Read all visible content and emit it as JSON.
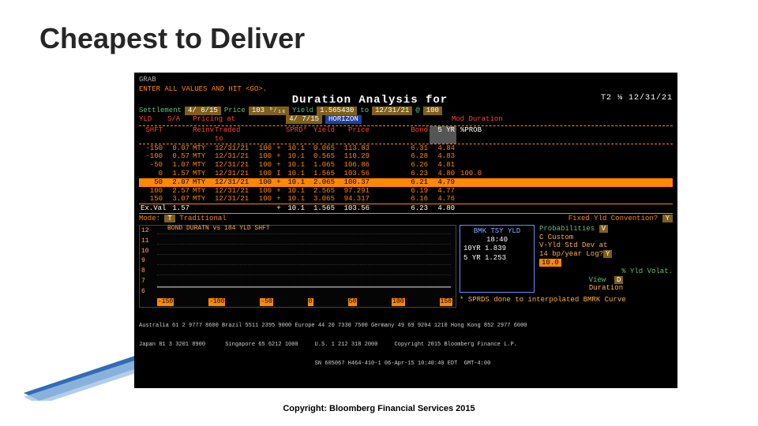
{
  "slide": {
    "title": "Cheapest to Deliver"
  },
  "grab": "GRAB",
  "prompt": "ENTER ALL VALUES AND HIT <GO>.",
  "analysisTitle": "Duration    Analysis  for",
  "hdrRight": "T2 ⅛  12/31/21",
  "settle": {
    "label": "Settlement",
    "date": "4/ 6/15",
    "priceLbl": "Price",
    "price": "103 ⁹⁄₁₆",
    "yieldLbl": "Yield",
    "yield": "1.565430",
    "to": "to",
    "toDate": "12/31/21",
    "at": "@",
    "atVal": "100"
  },
  "yldRow": {
    "yld": "YLD",
    "sa": "S/A",
    "pricing": "Pricing at",
    "date": "4/ 7/15",
    "horizon": "HORIZON",
    "moddur": "Mod Duration"
  },
  "header": {
    "shft": "SHFT",
    "reinv": "Reinv",
    "traded": "Traded to",
    "sprd": "SPRD*",
    "yield": "Yield",
    "price": "Price",
    "bond": "Bond",
    "fiveyr": "5 YR",
    "prob": "%PROB"
  },
  "rows": [
    {
      "shft": "-150",
      "sa": "0.07",
      "rein": "MTY",
      "trad": "12/31/21",
      "sp": "100",
      "plus": "+",
      "sprd": "10.1",
      "yld": "0.065",
      "prc": "113.83",
      "bond": "6.31",
      "fyr": "4.84",
      "prob": ""
    },
    {
      "shft": "-100",
      "sa": "0.57",
      "rein": "MTY",
      "trad": "12/31/21",
      "sp": "100",
      "plus": "+",
      "sprd": "10.1",
      "yld": "0.565",
      "prc": "110.29",
      "bond": "6.28",
      "fyr": "4.83",
      "prob": ""
    },
    {
      "shft": "-50",
      "sa": "1.07",
      "rein": "MTY",
      "trad": "12/31/21",
      "sp": "100",
      "plus": "+",
      "sprd": "10.1",
      "yld": "1.065",
      "prc": "106.86",
      "bond": "6.26",
      "fyr": "4.81",
      "prob": ""
    },
    {
      "shft": "0",
      "sa": "1.57",
      "rein": "MTY",
      "trad": "12/31/21",
      "sp": "100",
      "plus": "I",
      "sprd": "10.1",
      "yld": "1.565",
      "prc": "103.56",
      "bond": "6.23",
      "fyr": "4.80",
      "prob": "100.0"
    },
    {
      "shft": "50",
      "sa": "2.07",
      "rein": "MTY",
      "trad": "12/31/21",
      "sp": "100",
      "plus": "+",
      "sprd": "10.1",
      "yld": "2.065",
      "prc": "100.37",
      "bond": "6.21",
      "fyr": "4.79",
      "prob": "",
      "hl": true
    },
    {
      "shft": "100",
      "sa": "2.57",
      "rein": "MTY",
      "trad": "12/31/21",
      "sp": "100",
      "plus": "+",
      "sprd": "10.1",
      "yld": "2.565",
      "prc": "97.291",
      "bond": "6.19",
      "fyr": "4.77",
      "prob": ""
    },
    {
      "shft": "150",
      "sa": "3.07",
      "rein": "MTY",
      "trad": "12/31/21",
      "sp": "100",
      "plus": "+",
      "sprd": "10.1",
      "yld": "3.065",
      "prc": "94.317",
      "bond": "6.16",
      "fyr": "4.76",
      "prob": ""
    }
  ],
  "exval": {
    "label": "Ex.Val",
    "sa": "1.57",
    "sprd": "10.1",
    "yld": "1.565",
    "prc": "103.56",
    "bond": "6.23",
    "fyr": "4.80"
  },
  "mode": {
    "label": "Mode:",
    "val": "T",
    "trad": "Traditional",
    "fyc": "Fixed Yld Convention?",
    "fycv": "Y"
  },
  "chart": {
    "title": "BOND DURATN vs 184 YLD SHFT",
    "yticks": [
      "12",
      "11",
      "10",
      "9",
      "8",
      "7",
      "6"
    ],
    "xticks": [
      "-150",
      "-100",
      "-50",
      "0",
      "50",
      "100",
      "150"
    ],
    "line": "M 0 86 L 100 86"
  },
  "bmk": {
    "title": "BMK TSY YLD",
    "time": "18:40",
    "r1": "10YR   1.839",
    "r2": "5 YR   1.253"
  },
  "probs": {
    "heading": "Probabilities",
    "probV": "V",
    "custom": "C Custom",
    "stddev": "V-Yld Std Dev at",
    "bpyr": "14 bp/year   Log?",
    "logV": "Y",
    "volVal": "10.0",
    "volLbl": "% Yld Volat.",
    "view": "View",
    "viewV": "D",
    "dur": "Duration"
  },
  "sprdsNote": "* SPRDS done to interpolated BMRK Curve",
  "footer1": "Australia 61 2 9777 8600 Brazil 5511 2395 9000 Europe 44 20 7330 7500 Germany 49 69 9204 1210 Hong Kong 852 2977 6000",
  "footer2": "Japan 81 3 3201 8900      Singapore 65 6212 1000     U.S. 1 212 318 2000     Copyright 2015 Bloomberg Finance L.P.",
  "footer3": "                                                     SN 605067 H464-410-1 06-Apr-15 10:40:40 EDT  GMT-4:00",
  "copyright": "Copyright: Bloomberg Financial Services 2015"
}
